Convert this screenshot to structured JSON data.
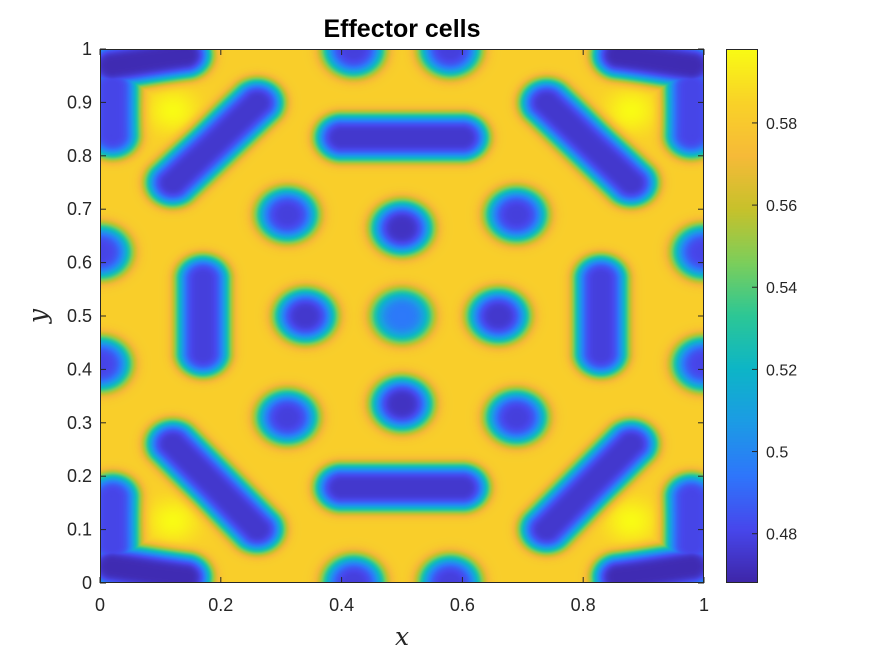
{
  "chart_data": {
    "type": "heatmap",
    "title": "Effector cells",
    "xlabel": "x",
    "ylabel": "y",
    "xlim": [
      0,
      1
    ],
    "ylim": [
      0,
      1
    ],
    "x_ticks": [
      "0",
      "0.2",
      "0.4",
      "0.6",
      "0.8",
      "1"
    ],
    "y_ticks": [
      "0",
      "0.1",
      "0.2",
      "0.3",
      "0.4",
      "0.5",
      "0.6",
      "0.7",
      "0.8",
      "0.9",
      "1"
    ],
    "colorbar": {
      "range": [
        0.468,
        0.598
      ],
      "ticks": [
        "0.48",
        "0.5",
        "0.52",
        "0.54",
        "0.56",
        "0.58"
      ],
      "colormap": "parula"
    },
    "field": {
      "background_value": 0.583,
      "spots": [
        {
          "x": 0.5,
          "y": 0.5,
          "value": 0.495
        },
        {
          "x": 0.34,
          "y": 0.5,
          "value": 0.475
        },
        {
          "x": 0.66,
          "y": 0.5,
          "value": 0.475
        },
        {
          "x": 0.5,
          "y": 0.665,
          "value": 0.473
        },
        {
          "x": 0.5,
          "y": 0.335,
          "value": 0.473
        },
        {
          "x": 0.31,
          "y": 0.69,
          "value": 0.478
        },
        {
          "x": 0.69,
          "y": 0.69,
          "value": 0.478
        },
        {
          "x": 0.31,
          "y": 0.31,
          "value": 0.478
        },
        {
          "x": 0.69,
          "y": 0.31,
          "value": 0.478
        },
        {
          "x": 0.0,
          "y": 0.62,
          "value": 0.48
        },
        {
          "x": 0.0,
          "y": 0.41,
          "value": 0.48
        },
        {
          "x": 1.0,
          "y": 0.62,
          "value": 0.48
        },
        {
          "x": 1.0,
          "y": 0.41,
          "value": 0.48
        },
        {
          "x": 0.42,
          "y": 1.0,
          "value": 0.478
        },
        {
          "x": 0.58,
          "y": 1.0,
          "value": 0.478
        },
        {
          "x": 0.42,
          "y": 0.0,
          "value": 0.478
        },
        {
          "x": 0.58,
          "y": 0.0,
          "value": 0.478
        }
      ],
      "stripes": [
        {
          "x1": 0.4,
          "y1": 0.835,
          "x2": 0.6,
          "y2": 0.835,
          "value": 0.475
        },
        {
          "x1": 0.4,
          "y1": 0.178,
          "x2": 0.6,
          "y2": 0.178,
          "value": 0.475
        },
        {
          "x1": 0.17,
          "y1": 0.57,
          "x2": 0.17,
          "y2": 0.43,
          "value": 0.478
        },
        {
          "x1": 0.83,
          "y1": 0.57,
          "x2": 0.83,
          "y2": 0.43,
          "value": 0.478
        },
        {
          "x1": 0.12,
          "y1": 0.75,
          "x2": 0.26,
          "y2": 0.9,
          "value": 0.475
        },
        {
          "x1": 0.88,
          "y1": 0.75,
          "x2": 0.74,
          "y2": 0.9,
          "value": 0.475
        },
        {
          "x1": 0.12,
          "y1": 0.26,
          "x2": 0.26,
          "y2": 0.1,
          "value": 0.475
        },
        {
          "x1": 0.88,
          "y1": 0.26,
          "x2": 0.74,
          "y2": 0.1,
          "value": 0.475
        },
        {
          "x1": 0.02,
          "y1": 0.97,
          "x2": 0.14,
          "y2": 0.99,
          "value": 0.47
        },
        {
          "x1": 0.98,
          "y1": 0.97,
          "x2": 0.86,
          "y2": 0.99,
          "value": 0.47
        },
        {
          "x1": 0.02,
          "y1": 0.03,
          "x2": 0.14,
          "y2": 0.01,
          "value": 0.47
        },
        {
          "x1": 0.98,
          "y1": 0.03,
          "x2": 0.86,
          "y2": 0.01,
          "value": 0.47
        },
        {
          "x1": 0.02,
          "y1": 0.93,
          "x2": 0.02,
          "y2": 0.84,
          "value": 0.48
        },
        {
          "x1": 0.98,
          "y1": 0.93,
          "x2": 0.98,
          "y2": 0.84,
          "value": 0.48
        },
        {
          "x1": 0.02,
          "y1": 0.16,
          "x2": 0.02,
          "y2": 0.07,
          "value": 0.48
        },
        {
          "x1": 0.98,
          "y1": 0.16,
          "x2": 0.98,
          "y2": 0.07,
          "value": 0.48
        }
      ],
      "peaks": [
        {
          "x": 0.12,
          "y": 0.885,
          "value": 0.598
        },
        {
          "x": 0.88,
          "y": 0.885,
          "value": 0.598
        },
        {
          "x": 0.12,
          "y": 0.115,
          "value": 0.598
        },
        {
          "x": 0.88,
          "y": 0.115,
          "value": 0.598
        }
      ]
    }
  }
}
